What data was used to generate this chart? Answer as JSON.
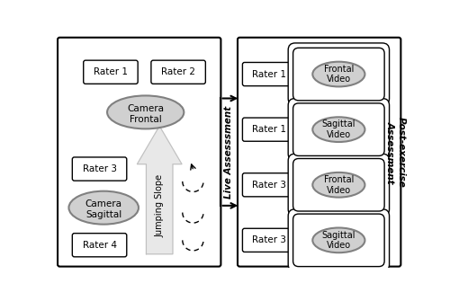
{
  "fig_width": 5.0,
  "fig_height": 3.35,
  "dpi": 100,
  "bg_color": "#ffffff",
  "box_edge": "#000000",
  "ellipse_fill": "#d0d0d0",
  "ellipse_edge": "#808080",
  "arrow_fill": "#e0e0e0",
  "text_color": "#000000",
  "live_label": "Live Assesssment",
  "post_label": "Post-exercise\nAssessment",
  "jumping_label": "Jumping Slope"
}
